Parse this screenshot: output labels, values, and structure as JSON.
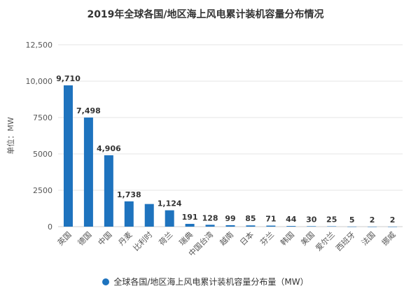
{
  "chart_data": {
    "type": "bar",
    "title": "2019年全球各国/地区海上风电累计装机容量分布情况",
    "ylabel": "单位：MW",
    "ylim": [
      0,
      12500
    ],
    "yticks": [
      "0",
      "2500",
      "5000",
      "7500",
      "10,000",
      "12,500"
    ],
    "ytick_values": [
      0,
      2500,
      5000,
      7500,
      10000,
      12500
    ],
    "grid": true,
    "legend_position": "bottom",
    "bar_color": "#1e73be",
    "categories": [
      "英国",
      "德国",
      "中国",
      "丹麦",
      "比利时",
      "荷兰",
      "瑞典",
      "中国台湾",
      "越南",
      "日本",
      "芬兰",
      "韩国",
      "美国",
      "爱尔兰",
      "西班牙",
      "法国",
      "挪威"
    ],
    "series": [
      {
        "name": "全球各国/地区海上风电累计装机容量分布量（MW）",
        "values": [
          9710,
          7498,
          4906,
          1738,
          1556,
          1124,
          191,
          128,
          99,
          85,
          71,
          44,
          30,
          25,
          5,
          2,
          2
        ],
        "labels": [
          "9,710",
          "7,498",
          "4,906",
          "1,738",
          "",
          "1,124",
          "191",
          "128",
          "99",
          "85",
          "71",
          "44",
          "30",
          "25",
          "5",
          "2",
          "2"
        ]
      }
    ]
  }
}
